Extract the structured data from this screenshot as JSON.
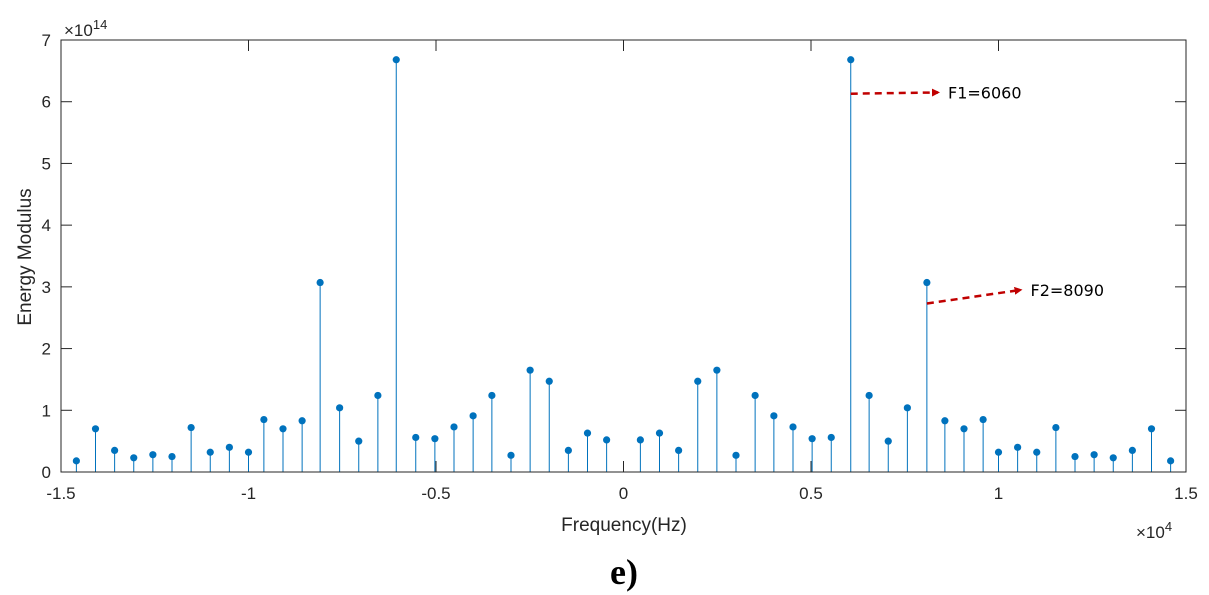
{
  "chart_data": {
    "type": "stem",
    "xlabel": "Frequency(Hz)",
    "ylabel": "Energy Modulus",
    "x_exponent": "×10",
    "x_exponent_power": "4",
    "y_exponent": "×10",
    "y_exponent_power": "14",
    "xlim": [
      -15000,
      15000
    ],
    "ylim": [
      0,
      700000000000000.0
    ],
    "xticks": [
      -15000,
      -10000,
      -5000,
      0,
      5000,
      10000,
      15000
    ],
    "xtick_labels": [
      "-1.5",
      "-1",
      "-0.5",
      "0",
      "0.5",
      "1",
      "1.5"
    ],
    "yticks": [
      0,
      100000000000000.0,
      200000000000000.0,
      300000000000000.0,
      400000000000000.0,
      500000000000000.0,
      600000000000000.0,
      700000000000000.0
    ],
    "ytick_labels": [
      "0",
      "1",
      "2",
      "3",
      "4",
      "5",
      "6",
      "7"
    ],
    "color": "#0072BD",
    "annotation_color": "#C00000",
    "series": [
      {
        "x": [
          -14590,
          -14080,
          -13570,
          -13060,
          -12550,
          -12040,
          -11530,
          -11020,
          -10510,
          -10000,
          -9590,
          -9080,
          -8570,
          -8090,
          -7570,
          -7060,
          -6550,
          -6060,
          -5540,
          -5030,
          -4520,
          -4010,
          -3510,
          -3000,
          -2490,
          -1980,
          -1470,
          -960,
          -450,
          450,
          960,
          1470,
          1980,
          2490,
          3000,
          3510,
          4010,
          4520,
          5030,
          5540,
          6060,
          6550,
          7060,
          7570,
          8090,
          8570,
          9080,
          9590,
          10000,
          10510,
          11020,
          11530,
          12040,
          12550,
          13060,
          13570,
          14080,
          14590
        ],
        "y": [
          18000000000000.0,
          70000000000000.0,
          35000000000000.0,
          23000000000000.0,
          28000000000000.0,
          25000000000000.0,
          72000000000000.0,
          32000000000000.0,
          40000000000000.0,
          32000000000000.0,
          85000000000000.0,
          70000000000000.0,
          83000000000000.0,
          307000000000000.0,
          104000000000000.0,
          50000000000000.0,
          124000000000000.0,
          668000000000000.0,
          56000000000000.0,
          54000000000000.0,
          73000000000000.0,
          91000000000000.0,
          124000000000000.0,
          27000000000000.0,
          165000000000000.0,
          147000000000000.0,
          35000000000000.0,
          63000000000000.0,
          52000000000000.0,
          52000000000000.0,
          63000000000000.0,
          35000000000000.0,
          147000000000000.0,
          165000000000000.0,
          27000000000000.0,
          124000000000000.0,
          91000000000000.0,
          73000000000000.0,
          54000000000000.0,
          56000000000000.0,
          668000000000000.0,
          124000000000000.0,
          50000000000000.0,
          104000000000000.0,
          307000000000000.0,
          83000000000000.0,
          70000000000000.0,
          85000000000000.0,
          32000000000000.0,
          40000000000000.0,
          32000000000000.0,
          72000000000000.0,
          25000000000000.0,
          28000000000000.0,
          23000000000000.0,
          35000000000000.0,
          70000000000000.0,
          18000000000000.0
        ]
      }
    ],
    "annotations": [
      {
        "text": "F1=6060",
        "x": 6060,
        "y": 613000000000000.0,
        "text_x": 8600,
        "text_y": 615000000000000.0
      },
      {
        "text": "F2=8090",
        "x": 8090,
        "y": 273000000000000.0,
        "text_x": 10800,
        "text_y": 295000000000000.0
      }
    ]
  },
  "panel_label": "e)"
}
